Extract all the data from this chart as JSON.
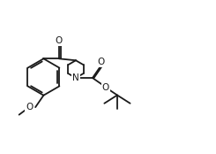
{
  "background_color": "#ffffff",
  "line_color": "#1a1a1a",
  "line_width": 1.3,
  "font_size": 7.5,
  "figsize": [
    2.45,
    1.74
  ],
  "dpi": 100,
  "xlim": [
    0,
    10
  ],
  "ylim": [
    0,
    7
  ]
}
